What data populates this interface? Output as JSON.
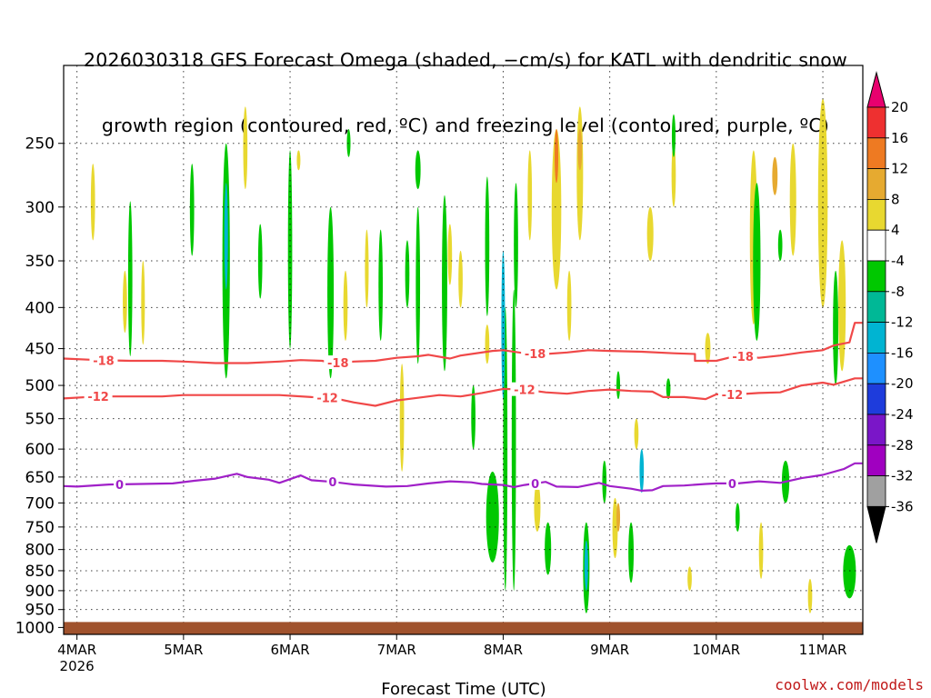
{
  "title_line1": "2026030318 GFS Forecast Omega (shaded, −cm/s) for KATL with dendritic snow",
  "title_line2": "growth region (contoured, red, ºC) and freezing level (contoured, purple, ºC)",
  "credit": "coolwx.com/models",
  "chart_data": {
    "type": "heatmap",
    "xlabel": "Forecast Time (UTC)",
    "ylabel": "",
    "x_ticks": [
      "4MAR",
      "5MAR",
      "6MAR",
      "7MAR",
      "8MAR",
      "9MAR",
      "10MAR",
      "11MAR"
    ],
    "x_first_tick_sublabel": "2026",
    "xlim_days": [
      3.875,
      11.375
    ],
    "y_ticks": [
      250,
      300,
      350,
      400,
      450,
      500,
      550,
      600,
      650,
      700,
      750,
      800,
      850,
      900,
      950,
      1000
    ],
    "ylim_hpa": [
      200,
      1020
    ],
    "y_scale": "log-pressure",
    "grid": true,
    "colorbar": {
      "levels": [
        20,
        16,
        12,
        8,
        4,
        -4,
        -8,
        -12,
        -16,
        -20,
        -24,
        -28,
        -32,
        -36
      ],
      "colors": [
        "#e8006e",
        "#ee3030",
        "#ee7a22",
        "#e6aa30",
        "#e8d830",
        "#ffffff",
        "#00c800",
        "#00b896",
        "#00b4d2",
        "#1e90ff",
        "#1e3cdc",
        "#7a16c8",
        "#a000c0",
        "#a0a0a0",
        "#000000"
      ]
    },
    "surface_color": "#a0522d",
    "contours": [
      {
        "label": "-18",
        "color": "#f04848",
        "points": [
          [
            3.87,
            463
          ],
          [
            4.2,
            465
          ],
          [
            4.5,
            466
          ],
          [
            4.8,
            466
          ],
          [
            5.0,
            467
          ],
          [
            5.3,
            469
          ],
          [
            5.6,
            469
          ],
          [
            5.9,
            467
          ],
          [
            6.1,
            465
          ],
          [
            6.3,
            466
          ],
          [
            6.4,
            469
          ],
          [
            6.6,
            467
          ],
          [
            6.8,
            466
          ],
          [
            7.0,
            462
          ],
          [
            7.2,
            460
          ],
          [
            7.3,
            458
          ],
          [
            7.5,
            463
          ],
          [
            7.6,
            459
          ],
          [
            7.9,
            453
          ],
          [
            8.0,
            452
          ],
          [
            8.2,
            456
          ],
          [
            8.4,
            457
          ],
          [
            8.6,
            455
          ],
          [
            8.8,
            452
          ],
          [
            9.0,
            453
          ],
          [
            9.3,
            454
          ],
          [
            9.6,
            456
          ],
          [
            9.8,
            457
          ],
          [
            9.8,
            466
          ],
          [
            10.0,
            466
          ],
          [
            10.2,
            459
          ],
          [
            10.4,
            462
          ],
          [
            10.6,
            459
          ],
          [
            10.8,
            455
          ],
          [
            11.0,
            452
          ],
          [
            11.1,
            446
          ],
          [
            11.25,
            442
          ],
          [
            11.3,
            418
          ],
          [
            11.37,
            418
          ]
        ]
      },
      {
        "label": "-12",
        "color": "#f04848",
        "points": [
          [
            3.87,
            519
          ],
          [
            4.2,
            516
          ],
          [
            4.5,
            516
          ],
          [
            4.8,
            516
          ],
          [
            5.0,
            514
          ],
          [
            5.3,
            514
          ],
          [
            5.6,
            514
          ],
          [
            5.9,
            514
          ],
          [
            6.2,
            517
          ],
          [
            6.4,
            518
          ],
          [
            6.6,
            525
          ],
          [
            6.8,
            530
          ],
          [
            7.0,
            522
          ],
          [
            7.2,
            518
          ],
          [
            7.4,
            514
          ],
          [
            7.6,
            516
          ],
          [
            7.8,
            511
          ],
          [
            8.0,
            505
          ],
          [
            8.2,
            506
          ],
          [
            8.4,
            510
          ],
          [
            8.6,
            512
          ],
          [
            8.8,
            508
          ],
          [
            9.0,
            506
          ],
          [
            9.2,
            508
          ],
          [
            9.4,
            509
          ],
          [
            9.5,
            517
          ],
          [
            9.7,
            517
          ],
          [
            9.9,
            520
          ],
          [
            10.0,
            513
          ],
          [
            10.2,
            513
          ],
          [
            10.4,
            511
          ],
          [
            10.6,
            510
          ],
          [
            10.8,
            500
          ],
          [
            11.0,
            496
          ],
          [
            11.1,
            499
          ],
          [
            11.3,
            490
          ],
          [
            11.37,
            490
          ]
        ]
      },
      {
        "label": "0",
        "color": "#a020c8",
        "points": [
          [
            3.87,
            667
          ],
          [
            4.0,
            668
          ],
          [
            4.3,
            664
          ],
          [
            4.6,
            663
          ],
          [
            4.9,
            662
          ],
          [
            5.1,
            657
          ],
          [
            5.3,
            653
          ],
          [
            5.5,
            644
          ],
          [
            5.6,
            650
          ],
          [
            5.8,
            655
          ],
          [
            5.9,
            661
          ],
          [
            6.1,
            647
          ],
          [
            6.2,
            656
          ],
          [
            6.4,
            659
          ],
          [
            6.6,
            664
          ],
          [
            6.9,
            668
          ],
          [
            7.1,
            667
          ],
          [
            7.3,
            662
          ],
          [
            7.5,
            658
          ],
          [
            7.7,
            660
          ],
          [
            7.8,
            663
          ],
          [
            8.0,
            665
          ],
          [
            8.1,
            669
          ],
          [
            8.2,
            665
          ],
          [
            8.4,
            659
          ],
          [
            8.5,
            668
          ],
          [
            8.7,
            669
          ],
          [
            8.9,
            661
          ],
          [
            9.0,
            667
          ],
          [
            9.2,
            672
          ],
          [
            9.3,
            676
          ],
          [
            9.4,
            675
          ],
          [
            9.5,
            667
          ],
          [
            9.7,
            666
          ],
          [
            9.9,
            663
          ],
          [
            10.0,
            662
          ],
          [
            10.2,
            662
          ],
          [
            10.4,
            658
          ],
          [
            10.6,
            661
          ],
          [
            10.8,
            652
          ],
          [
            11.0,
            646
          ],
          [
            11.2,
            635
          ],
          [
            11.3,
            625
          ],
          [
            11.37,
            625
          ]
        ]
      }
    ],
    "label_days": {
      "-18": [
        4.25,
        6.45,
        8.3,
        10.25
      ],
      "-12": [
        4.2,
        6.35,
        8.2,
        10.15
      ],
      "0": [
        4.4,
        6.4,
        8.3,
        10.15
      ]
    },
    "shaded_regions": [
      {
        "v": 6,
        "d": 4.15,
        "p": [
          265,
          330
        ],
        "w": 0.04
      },
      {
        "v": 6,
        "d": 4.45,
        "p": [
          360,
          430
        ],
        "w": 0.04
      },
      {
        "v": -6,
        "d": 4.5,
        "p": [
          295,
          460
        ],
        "w": 0.04
      },
      {
        "v": 6,
        "d": 4.62,
        "p": [
          350,
          445
        ],
        "w": 0.03
      },
      {
        "v": -6,
        "d": 5.08,
        "p": [
          265,
          345
        ],
        "w": 0.04
      },
      {
        "v": -6,
        "d": 5.4,
        "p": [
          250,
          490
        ],
        "w": 0.07
      },
      {
        "v": -12,
        "d": 5.4,
        "p": [
          280,
          380
        ],
        "w": 0.025
      },
      {
        "v": 6,
        "d": 5.58,
        "p": [
          225,
          285
        ],
        "w": 0.04
      },
      {
        "v": -6,
        "d": 5.72,
        "p": [
          315,
          390
        ],
        "w": 0.04
      },
      {
        "v": -6,
        "d": 6.0,
        "p": [
          255,
          450
        ],
        "w": 0.04
      },
      {
        "v": 6,
        "d": 6.08,
        "p": [
          255,
          270
        ],
        "w": 0.03
      },
      {
        "v": -6,
        "d": 6.38,
        "p": [
          300,
          490
        ],
        "w": 0.06
      },
      {
        "v": 6,
        "d": 6.52,
        "p": [
          360,
          440
        ],
        "w": 0.04
      },
      {
        "v": -6,
        "d": 6.55,
        "p": [
          240,
          260
        ],
        "w": 0.03
      },
      {
        "v": 6,
        "d": 6.72,
        "p": [
          320,
          400
        ],
        "w": 0.035
      },
      {
        "v": -6,
        "d": 6.85,
        "p": [
          320,
          440
        ],
        "w": 0.04
      },
      {
        "v": 6,
        "d": 7.05,
        "p": [
          470,
          640
        ],
        "w": 0.04
      },
      {
        "v": -6,
        "d": 7.1,
        "p": [
          330,
          400
        ],
        "w": 0.04
      },
      {
        "v": -6,
        "d": 7.2,
        "p": [
          300,
          470
        ],
        "w": 0.04
      },
      {
        "v": -6,
        "d": 7.2,
        "p": [
          255,
          285
        ],
        "w": 0.05
      },
      {
        "v": -6,
        "d": 7.45,
        "p": [
          290,
          480
        ],
        "w": 0.05
      },
      {
        "v": 6,
        "d": 7.5,
        "p": [
          315,
          375
        ],
        "w": 0.04
      },
      {
        "v": -6,
        "d": 7.85,
        "p": [
          275,
          410
        ],
        "w": 0.04
      },
      {
        "v": 6,
        "d": 7.6,
        "p": [
          340,
          400
        ],
        "w": 0.04
      },
      {
        "v": -6,
        "d": 7.72,
        "p": [
          500,
          600
        ],
        "w": 0.04
      },
      {
        "v": 6,
        "d": 7.85,
        "p": [
          420,
          470
        ],
        "w": 0.04
      },
      {
        "v": -6,
        "d": 7.9,
        "p": [
          640,
          830
        ],
        "w": 0.12
      },
      {
        "v": -6,
        "d": 8.02,
        "p": [
          400,
          900
        ],
        "w": 0.04
      },
      {
        "v": -12,
        "d": 8.0,
        "p": [
          340,
          520
        ],
        "w": 0.02
      },
      {
        "v": -6,
        "d": 8.1,
        "p": [
          380,
          900
        ],
        "w": 0.04
      },
      {
        "v": 6,
        "d": 8.25,
        "p": [
          255,
          330
        ],
        "w": 0.04
      },
      {
        "v": -6,
        "d": 8.12,
        "p": [
          280,
          400
        ],
        "w": 0.04
      },
      {
        "v": 6,
        "d": 8.32,
        "p": [
          660,
          760
        ],
        "w": 0.06
      },
      {
        "v": -6,
        "d": 8.42,
        "p": [
          740,
          860
        ],
        "w": 0.06
      },
      {
        "v": 6,
        "d": 8.5,
        "p": [
          240,
          380
        ],
        "w": 0.09
      },
      {
        "v": 14,
        "d": 8.5,
        "p": [
          240,
          280
        ],
        "w": 0.03
      },
      {
        "v": 6,
        "d": 8.62,
        "p": [
          360,
          440
        ],
        "w": 0.04
      },
      {
        "v": 6,
        "d": 8.72,
        "p": [
          225,
          330
        ],
        "w": 0.06
      },
      {
        "v": 10,
        "d": 8.72,
        "p": [
          240,
          270
        ],
        "w": 0.04
      },
      {
        "v": -6,
        "d": 8.78,
        "p": [
          740,
          960
        ],
        "w": 0.06
      },
      {
        "v": -14,
        "d": 8.78,
        "p": [
          780,
          900
        ],
        "w": 0.03
      },
      {
        "v": -6,
        "d": 8.95,
        "p": [
          620,
          700
        ],
        "w": 0.04
      },
      {
        "v": 6,
        "d": 9.05,
        "p": [
          690,
          820
        ],
        "w": 0.05
      },
      {
        "v": 10,
        "d": 9.08,
        "p": [
          700,
          760
        ],
        "w": 0.03
      },
      {
        "v": -6,
        "d": 9.08,
        "p": [
          480,
          520
        ],
        "w": 0.03
      },
      {
        "v": -6,
        "d": 9.2,
        "p": [
          740,
          880
        ],
        "w": 0.05
      },
      {
        "v": -12,
        "d": 9.3,
        "p": [
          600,
          680
        ],
        "w": 0.04
      },
      {
        "v": 6,
        "d": 9.25,
        "p": [
          550,
          600
        ],
        "w": 0.04
      },
      {
        "v": 6,
        "d": 9.38,
        "p": [
          300,
          350
        ],
        "w": 0.06
      },
      {
        "v": -6,
        "d": 9.55,
        "p": [
          490,
          520
        ],
        "w": 0.04
      },
      {
        "v": 6,
        "d": 9.6,
        "p": [
          250,
          300
        ],
        "w": 0.04
      },
      {
        "v": -6,
        "d": 9.6,
        "p": [
          230,
          260
        ],
        "w": 0.03
      },
      {
        "v": 6,
        "d": 9.75,
        "p": [
          840,
          900
        ],
        "w": 0.04
      },
      {
        "v": 6,
        "d": 9.92,
        "p": [
          430,
          470
        ],
        "w": 0.05
      },
      {
        "v": -6,
        "d": 10.2,
        "p": [
          700,
          760
        ],
        "w": 0.04
      },
      {
        "v": 6,
        "d": 10.35,
        "p": [
          255,
          420
        ],
        "w": 0.07
      },
      {
        "v": -6,
        "d": 10.38,
        "p": [
          280,
          440
        ],
        "w": 0.07
      },
      {
        "v": 6,
        "d": 10.42,
        "p": [
          740,
          870
        ],
        "w": 0.04
      },
      {
        "v": -6,
        "d": 10.6,
        "p": [
          320,
          350
        ],
        "w": 0.04
      },
      {
        "v": 6,
        "d": 10.72,
        "p": [
          250,
          345
        ],
        "w": 0.06
      },
      {
        "v": -6,
        "d": 10.65,
        "p": [
          620,
          700
        ],
        "w": 0.07
      },
      {
        "v": -6,
        "d": 11.12,
        "p": [
          360,
          500
        ],
        "w": 0.05
      },
      {
        "v": 6,
        "d": 11.0,
        "p": [
          220,
          400
        ],
        "w": 0.09
      },
      {
        "v": 10,
        "d": 10.55,
        "p": [
          260,
          290
        ],
        "w": 0.05
      },
      {
        "v": 6,
        "d": 11.18,
        "p": [
          330,
          480
        ],
        "w": 0.07
      },
      {
        "v": -6,
        "d": 11.25,
        "p": [
          790,
          920
        ],
        "w": 0.12
      },
      {
        "v": 6,
        "d": 10.88,
        "p": [
          870,
          960
        ],
        "w": 0.04
      }
    ]
  }
}
